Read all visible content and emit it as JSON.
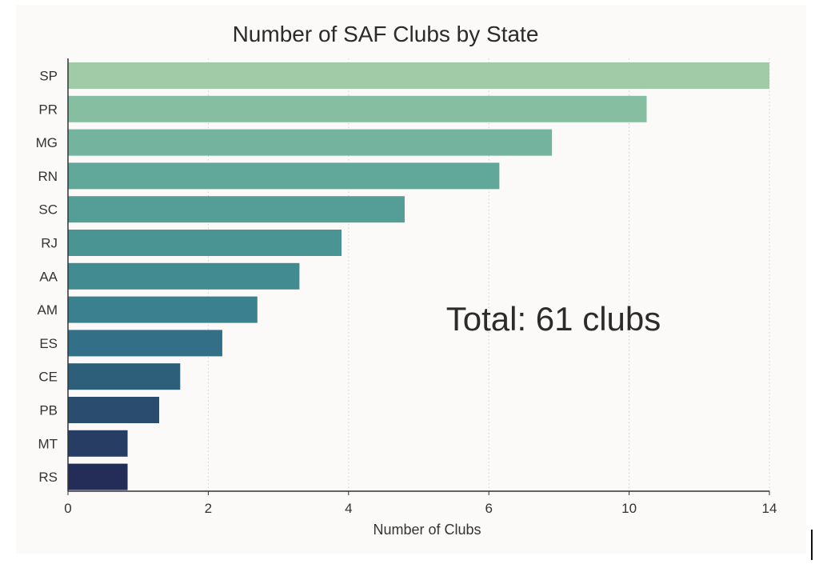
{
  "chart_data": {
    "type": "bar",
    "orientation": "horizontal",
    "title": "Number of SAF Clubs by State",
    "xlabel": "Number of Clubs",
    "ylabel": "",
    "categories": [
      "SP",
      "PR",
      "MG",
      "RN",
      "SC",
      "RJ",
      "AA",
      "AM",
      "ES",
      "CE",
      "PB",
      "MT",
      "RS"
    ],
    "values": [
      14,
      10.5,
      7.8,
      6.3,
      4.8,
      3.9,
      3.3,
      2.7,
      2.2,
      1.6,
      1.3,
      0.85,
      0.85
    ],
    "x_ticks": [
      0,
      2,
      4,
      6,
      10,
      14
    ],
    "xlim": [
      0,
      14
    ],
    "grid": "vertical-dotted",
    "annotation": "Total: 61 clubs",
    "colors": [
      "#a0cba6",
      "#86bea1",
      "#74b39e",
      "#62a89a",
      "#559e97",
      "#4a9594",
      "#428c91",
      "#3a808e",
      "#336f86",
      "#2d5e7a",
      "#2a4d6f",
      "#273d63",
      "#242c58"
    ]
  }
}
